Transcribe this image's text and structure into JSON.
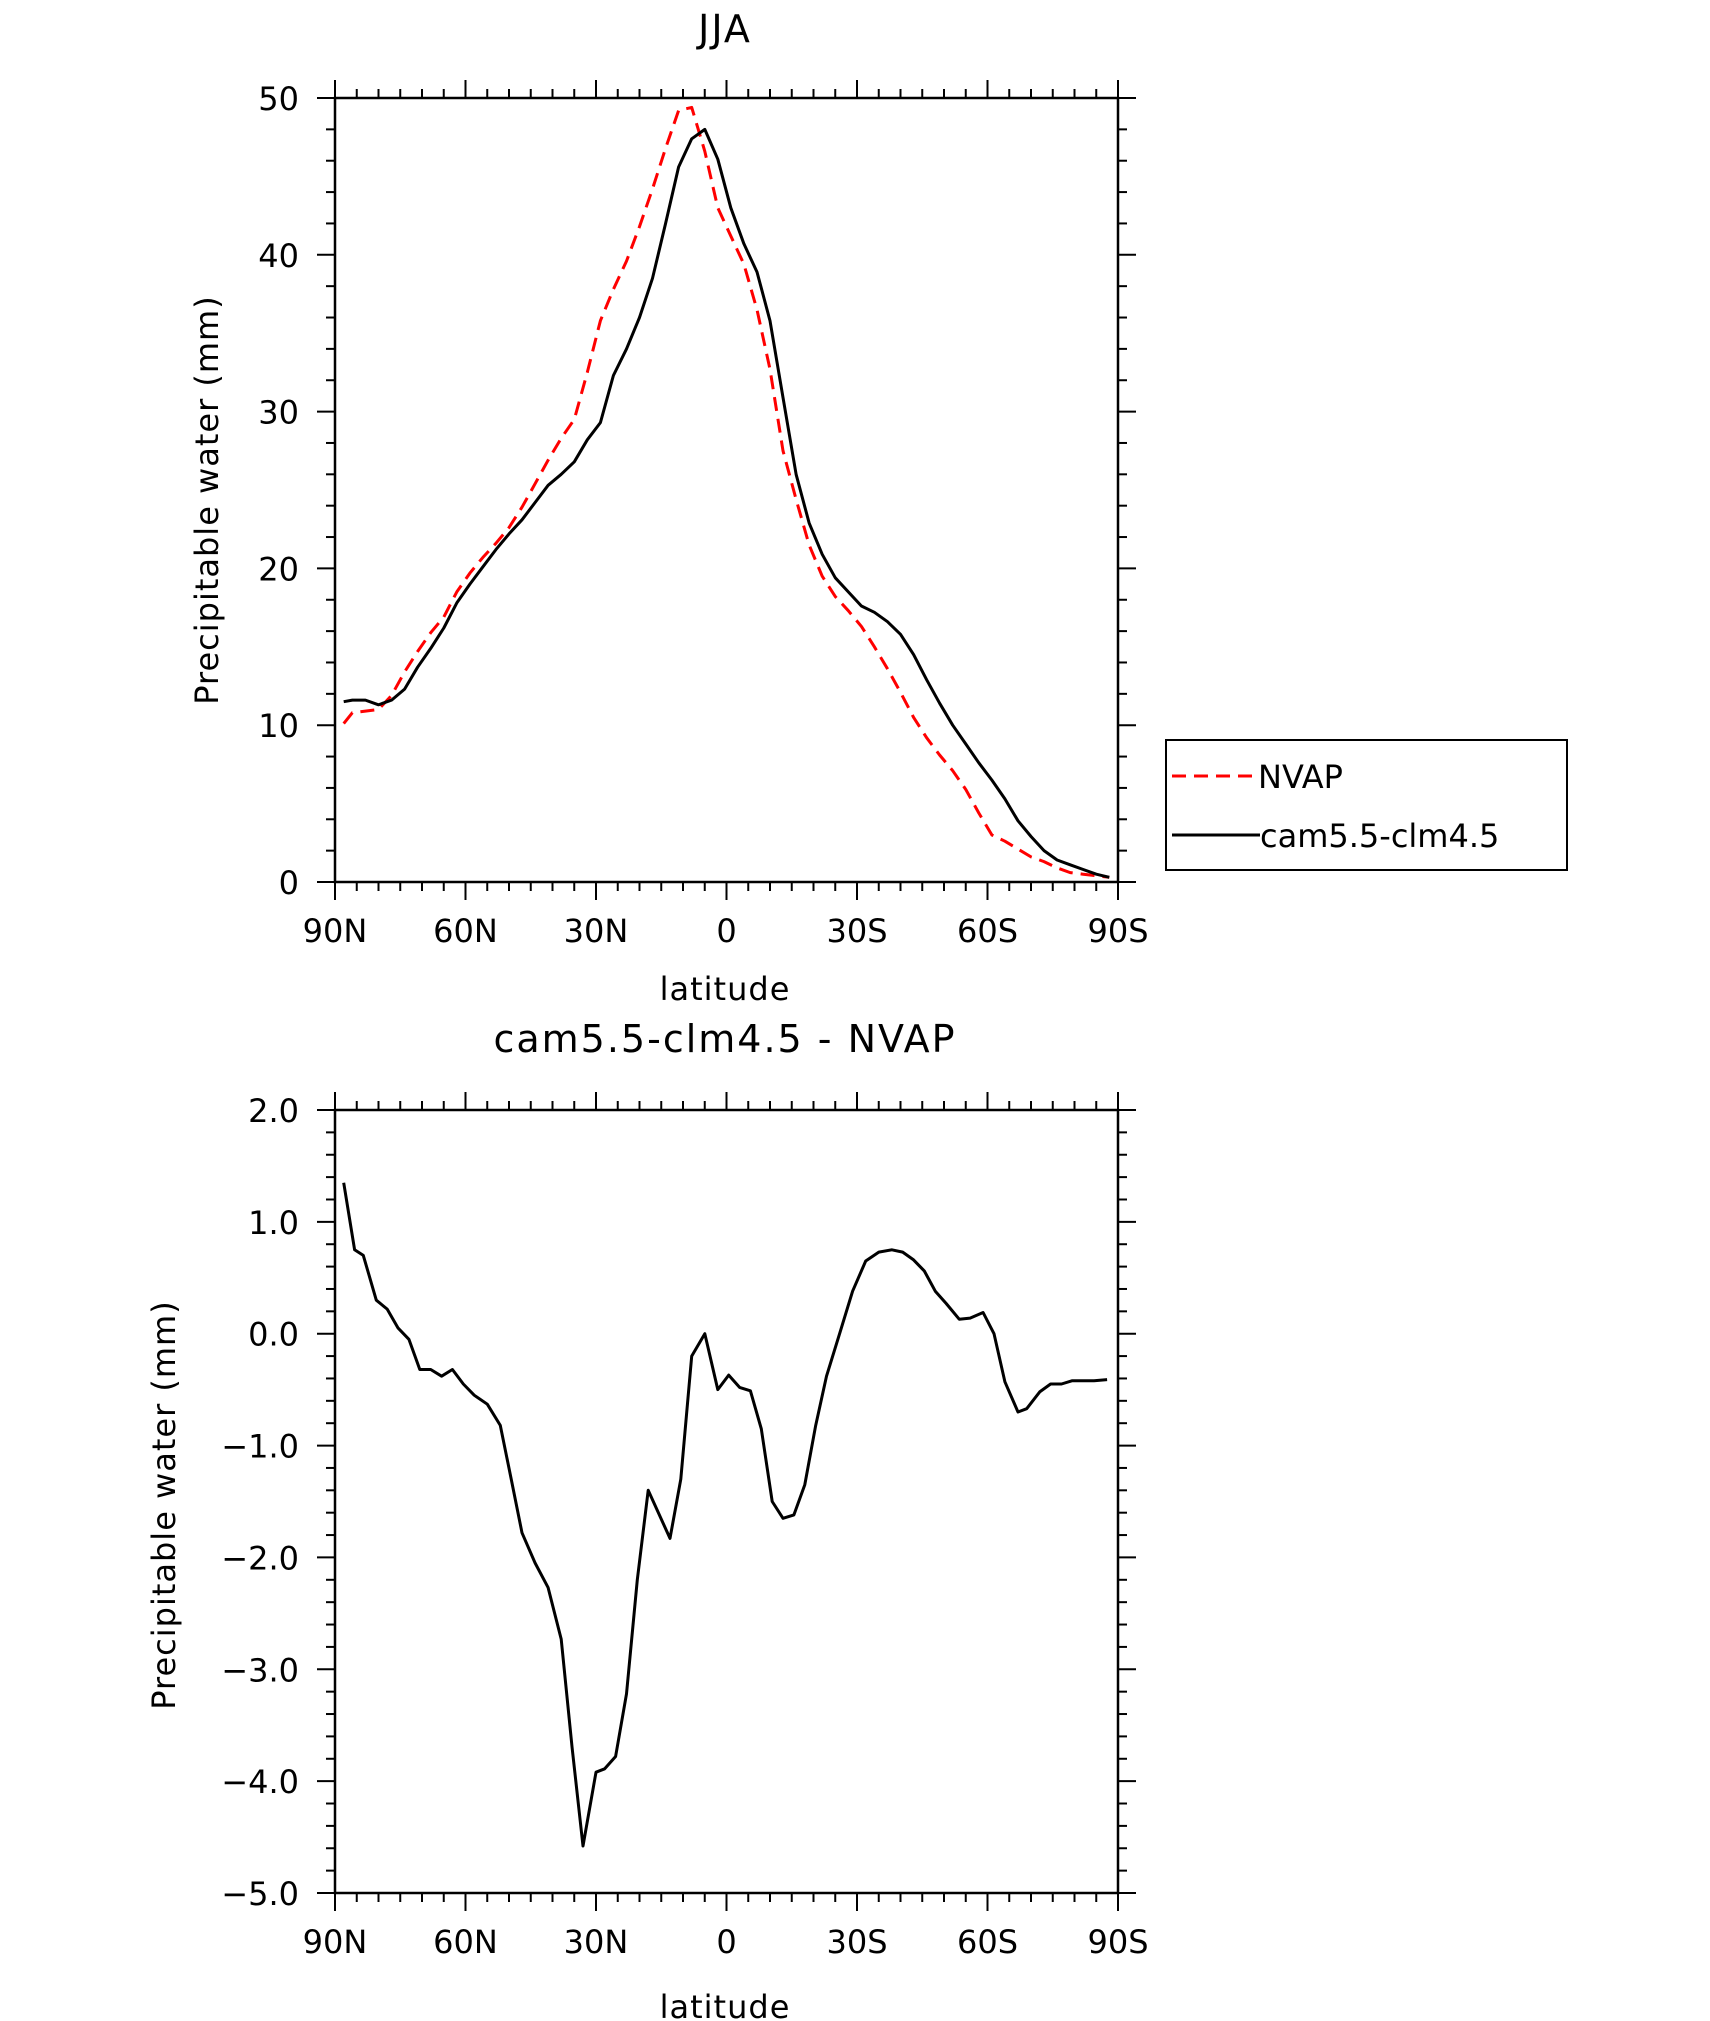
{
  "chart_data": [
    {
      "type": "line",
      "title": "JJA",
      "xlabel": "latitude",
      "ylabel": "Precipitable water (mm)",
      "xticks": [
        "90N",
        "60N",
        "30N",
        "0",
        "30S",
        "60S",
        "90S"
      ],
      "xlim": [
        -90,
        90
      ],
      "ylim": [
        0,
        50
      ],
      "yticks": [
        "0",
        "10",
        "20",
        "30",
        "40",
        "50"
      ],
      "legend_position": "right",
      "grid": false,
      "x": [
        -88,
        -86,
        -83,
        -80,
        -77,
        -74,
        -71,
        -68,
        -65,
        -62,
        -59,
        -56,
        -53,
        -50,
        -47,
        -44,
        -41,
        -38,
        -35,
        -32,
        -29,
        -26,
        -23,
        -20,
        -17,
        -14,
        -11,
        -8,
        -5,
        -2,
        1,
        4,
        7,
        10,
        13,
        16,
        19,
        22,
        25,
        28,
        31,
        34,
        37,
        40,
        43,
        46,
        49,
        52,
        55,
        58,
        61,
        64,
        67,
        70,
        73,
        76,
        79,
        82,
        85,
        88
      ],
      "series": [
        {
          "name": "NVAP",
          "color": "#ff0000",
          "dash": "dashed",
          "values": [
            10.1,
            10.8,
            10.9,
            11.0,
            11.9,
            13.4,
            14.7,
            15.9,
            16.9,
            18.5,
            19.7,
            20.7,
            21.6,
            22.6,
            23.9,
            25.4,
            26.9,
            28.3,
            29.5,
            32.5,
            35.8,
            37.8,
            39.6,
            41.8,
            44.2,
            46.8,
            49.2,
            49.4,
            46.6,
            43.0,
            41.2,
            39.4,
            36.5,
            32.7,
            27.5,
            24.4,
            21.5,
            19.5,
            18.2,
            17.3,
            16.3,
            15.0,
            13.6,
            12.1,
            10.5,
            9.2,
            8.1,
            7.1,
            5.9,
            4.4,
            3.0,
            2.6,
            2.1,
            1.6,
            1.3,
            0.9,
            0.6,
            0.5,
            0.4,
            0.3
          ]
        },
        {
          "name": "cam5.5-clm4.5",
          "color": "#000000",
          "dash": "solid",
          "values": [
            11.5,
            11.6,
            11.6,
            11.3,
            11.6,
            12.3,
            13.7,
            14.9,
            16.2,
            17.8,
            19.0,
            20.1,
            21.2,
            22.2,
            23.1,
            24.2,
            25.3,
            26.0,
            26.8,
            28.2,
            29.3,
            32.3,
            34.0,
            36.0,
            38.5,
            42.0,
            45.6,
            47.4,
            48.0,
            46.1,
            43.0,
            40.7,
            38.9,
            35.8,
            30.9,
            26.0,
            22.9,
            20.9,
            19.4,
            18.5,
            17.6,
            17.2,
            16.6,
            15.8,
            14.5,
            12.9,
            11.4,
            10.0,
            8.8,
            7.6,
            6.5,
            5.3,
            3.9,
            2.9,
            2.0,
            1.4,
            1.1,
            0.8,
            0.5,
            0.3
          ]
        }
      ]
    },
    {
      "type": "line",
      "title": "cam5.5-clm4.5 - NVAP",
      "xlabel": "latitude",
      "ylabel": "Precipitable water (mm)",
      "xticks": [
        "90N",
        "60N",
        "30N",
        "0",
        "30S",
        "60S",
        "90S"
      ],
      "xlim": [
        -90,
        90
      ],
      "ylim": [
        -5.0,
        2.0
      ],
      "yticks": [
        "-5.0",
        "-4.0",
        "-3.0",
        "-2.0",
        "-1.0",
        "0.0",
        "1.0",
        "2.0"
      ],
      "grid": false,
      "x": [
        -88,
        -85.5,
        -83.5,
        -80.5,
        -78,
        -75.5,
        -73,
        -70.5,
        -68,
        -65.5,
        -63,
        -60.5,
        -58,
        -55,
        -52,
        -49.5,
        -47,
        -44,
        -41,
        -38,
        -35.5,
        -33,
        -30,
        -28,
        -25.5,
        -23,
        -20.5,
        -18,
        -13,
        -10.5,
        -8,
        -5,
        -2,
        0.5,
        3,
        5.5,
        8,
        10.5,
        13,
        15.5,
        18,
        20.5,
        23,
        26,
        29,
        32,
        35,
        38,
        40.5,
        43,
        45.5,
        48,
        50.5,
        53.5,
        56,
        59,
        61.5,
        64,
        67,
        69,
        72,
        74.5,
        77,
        79.5,
        82,
        84.5,
        87.5
      ],
      "series": [
        {
          "name": "",
          "color": "#000000",
          "dash": "solid",
          "values": [
            1.35,
            0.75,
            0.7,
            0.3,
            0.22,
            0.05,
            -0.05,
            -0.32,
            -0.32,
            -0.38,
            -0.32,
            -0.45,
            -0.55,
            -0.63,
            -0.82,
            -1.3,
            -1.78,
            -2.05,
            -2.27,
            -2.73,
            -3.7,
            -4.58,
            -3.92,
            -3.89,
            -3.78,
            -3.22,
            -2.2,
            -1.4,
            -1.83,
            -1.3,
            -0.2,
            0.0,
            -0.5,
            -0.37,
            -0.48,
            -0.51,
            -0.85,
            -1.5,
            -1.65,
            -1.62,
            -1.35,
            -0.82,
            -0.38,
            0.0,
            0.38,
            0.65,
            0.73,
            0.75,
            0.73,
            0.66,
            0.56,
            0.38,
            0.27,
            0.13,
            0.14,
            0.19,
            0.0,
            -0.43,
            -0.7,
            -0.67,
            -0.52,
            -0.45,
            -0.45,
            -0.42,
            -0.42,
            -0.42,
            -0.41
          ]
        }
      ]
    }
  ]
}
